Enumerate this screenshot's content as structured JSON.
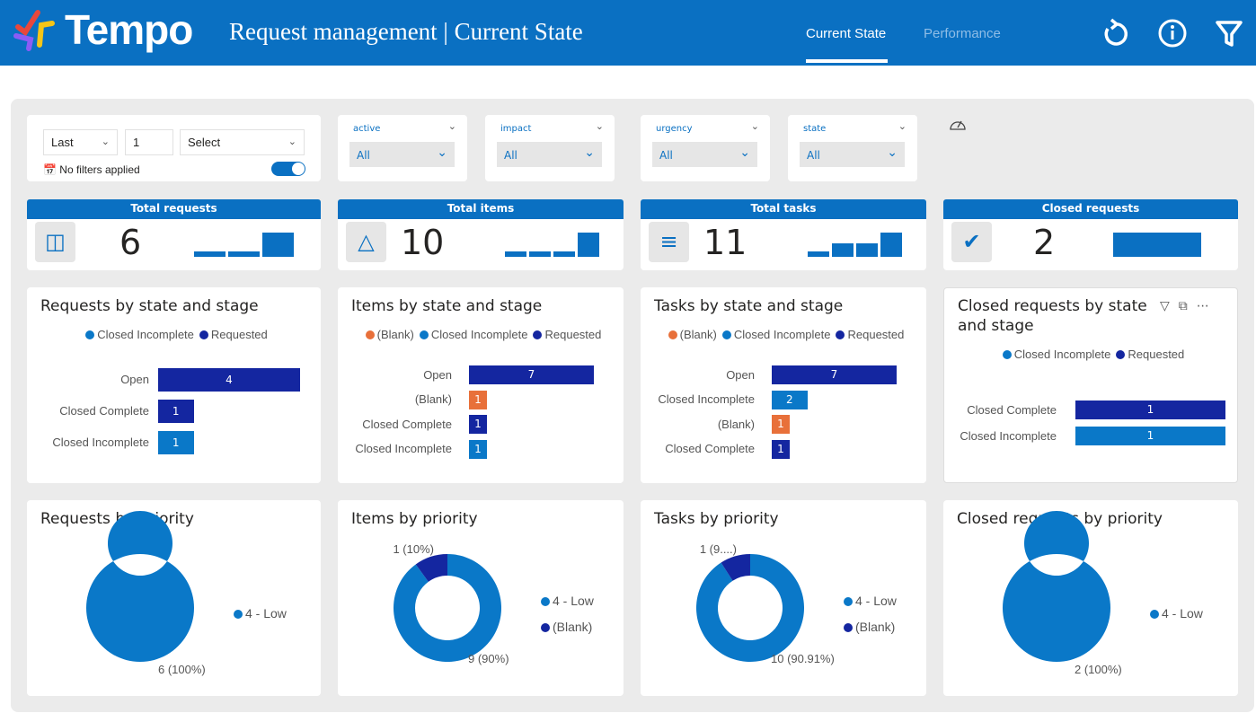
{
  "colors": {
    "header": "#0a70c2",
    "closed_incomplete": "#0a78c8",
    "requested": "#1426a0",
    "blank": "#e8703a"
  },
  "header": {
    "logo": "Tempo",
    "title": "Request management | Current State",
    "tabs": [
      {
        "label": "Current State",
        "active": true
      },
      {
        "label": "Performance",
        "active": false
      }
    ],
    "icons": [
      "refresh-icon",
      "info-icon",
      "filter-icon"
    ]
  },
  "date_filter": {
    "period": "Last",
    "count": "1",
    "unit_placeholder": "Select",
    "status": "No filters applied"
  },
  "slicers": [
    {
      "label": "active",
      "value": "All"
    },
    {
      "label": "impact",
      "value": "All"
    },
    {
      "label": "urgency",
      "value": "All"
    },
    {
      "label": "state",
      "value": "All"
    }
  ],
  "kpis": [
    {
      "title": "Total requests",
      "value": "6",
      "icon": "request-icon"
    },
    {
      "title": "Total items",
      "value": "10",
      "icon": "shapes-icon"
    },
    {
      "title": "Total tasks",
      "value": "11",
      "icon": "list-icon"
    },
    {
      "title": "Closed requests",
      "value": "2",
      "icon": "check-icon"
    }
  ],
  "chart_data": [
    {
      "type": "bar",
      "title": "Requests by state and stage",
      "legend": [
        "Closed Incomplete",
        "Requested"
      ],
      "categories": [
        "Open",
        "Closed Complete",
        "Closed Incomplete"
      ],
      "values": [
        4,
        1,
        1
      ],
      "series_of_bar": [
        "Requested",
        "Requested",
        "Closed Incomplete"
      ]
    },
    {
      "type": "bar",
      "title": "Items by state and stage",
      "legend": [
        "(Blank)",
        "Closed Incomplete",
        "Requested"
      ],
      "categories": [
        "Open",
        "(Blank)",
        "Closed Complete",
        "Closed Incomplete"
      ],
      "values": [
        7,
        1,
        1,
        1
      ],
      "series_of_bar": [
        "Requested",
        "(Blank)",
        "Requested",
        "Closed Incomplete"
      ]
    },
    {
      "type": "bar",
      "title": "Tasks by state and stage",
      "legend": [
        "(Blank)",
        "Closed Incomplete",
        "Requested"
      ],
      "categories": [
        "Open",
        "Closed Incomplete",
        "(Blank)",
        "Closed Complete"
      ],
      "values": [
        7,
        2,
        1,
        1
      ],
      "series_of_bar": [
        "Requested",
        "Closed Incomplete",
        "(Blank)",
        "Requested"
      ]
    },
    {
      "type": "bar",
      "title": "Closed requests by state and stage",
      "legend": [
        "Closed Incomplete",
        "Requested"
      ],
      "categories": [
        "Closed Complete",
        "Closed Incomplete"
      ],
      "values": [
        1,
        1
      ],
      "series_of_bar": [
        "Requested",
        "Closed Incomplete"
      ]
    },
    {
      "type": "pie",
      "title": "Requests by priority",
      "legend": [
        "4 - Low"
      ],
      "values": [
        6
      ],
      "labels": [
        "6 (100%)"
      ]
    },
    {
      "type": "pie",
      "title": "Items by priority",
      "legend": [
        "4 - Low",
        "(Blank)"
      ],
      "values": [
        9,
        1
      ],
      "labels": [
        "9 (90%)",
        "1 (10%)"
      ]
    },
    {
      "type": "pie",
      "title": "Tasks by priority",
      "legend": [
        "4 - Low",
        "(Blank)"
      ],
      "values": [
        10,
        1
      ],
      "labels": [
        "10 (90.91%)",
        "1 (9....)"
      ]
    },
    {
      "type": "pie",
      "title": "Closed requests by priority",
      "legend": [
        "4 - Low"
      ],
      "values": [
        2
      ],
      "labels": [
        "2 (100%)"
      ]
    }
  ]
}
